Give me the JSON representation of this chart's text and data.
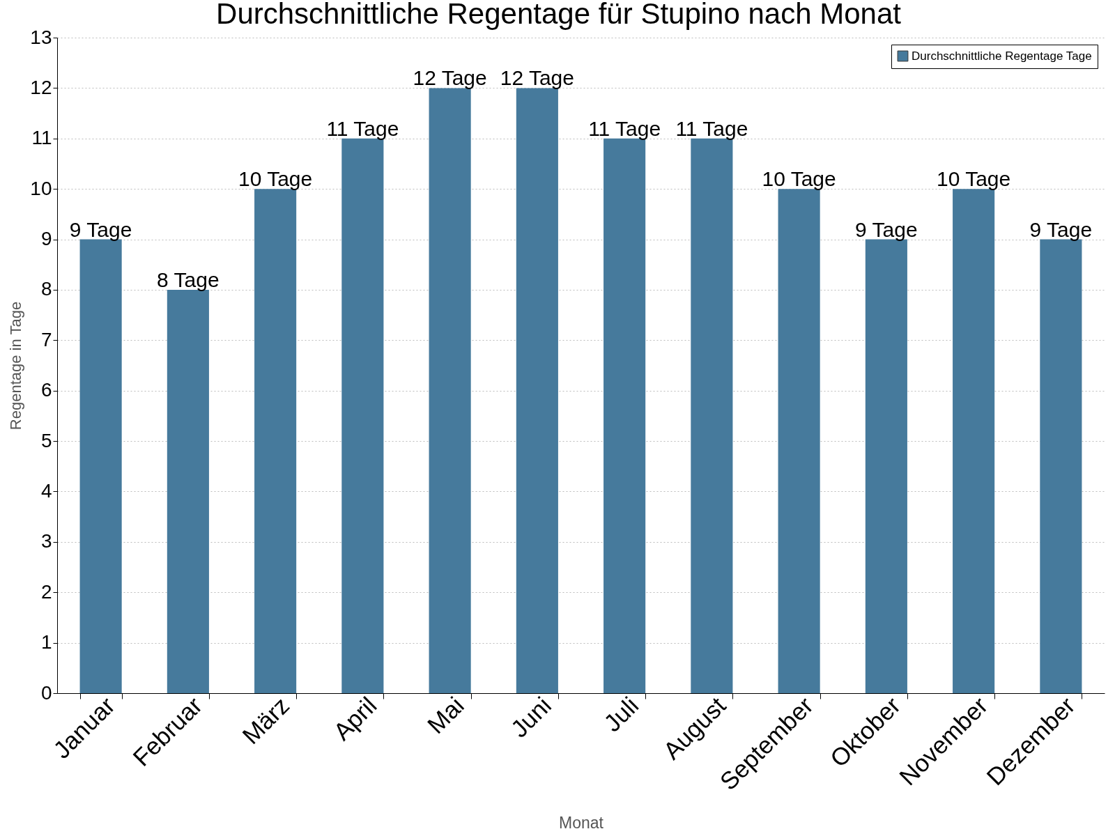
{
  "chart_data": {
    "type": "bar",
    "title": "Durchschnittliche Regentage für Stupino nach Monat",
    "xlabel": "Monat",
    "ylabel": "Regentage in Tage",
    "categories": [
      "Januar",
      "Februar",
      "März",
      "April",
      "Mai",
      "Juni",
      "Juli",
      "August",
      "September",
      "Oktober",
      "November",
      "Dezember"
    ],
    "series": [
      {
        "name": "Durchschnittliche Regentage Tage",
        "color": "#467a9c",
        "values": [
          9,
          8,
          10,
          11,
          12,
          12,
          11,
          11,
          10,
          9,
          10,
          9
        ],
        "value_labels": [
          "9 Tage",
          "8 Tage",
          "10 Tage",
          "11 Tage",
          "12 Tage",
          "12 Tage",
          "11 Tage",
          "11 Tage",
          "10 Tage",
          "9 Tage",
          "10 Tage",
          "9 Tage"
        ]
      }
    ],
    "ylim": [
      0,
      13
    ],
    "yticks": [
      0,
      1,
      2,
      3,
      4,
      5,
      6,
      7,
      8,
      9,
      10,
      11,
      12,
      13
    ],
    "grid": "y",
    "legend": "top right"
  }
}
